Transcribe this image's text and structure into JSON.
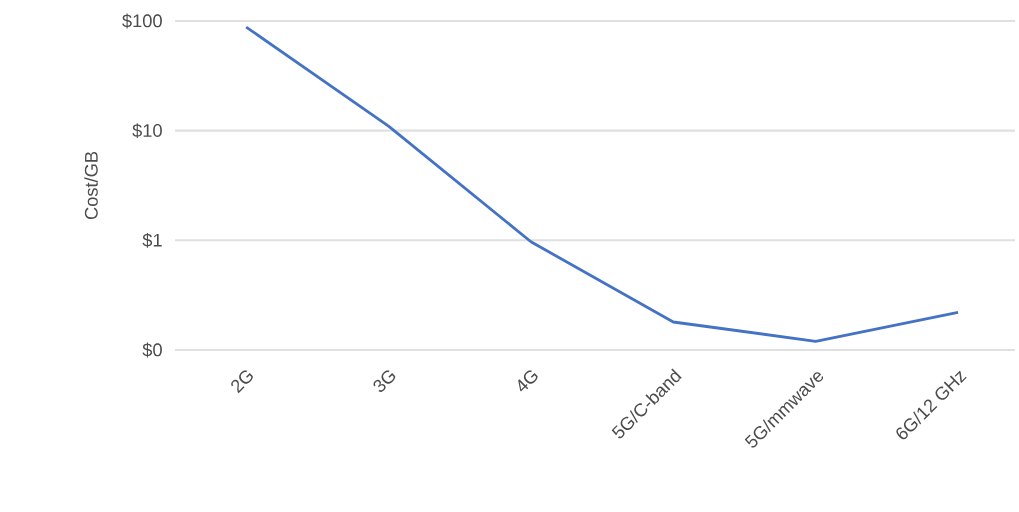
{
  "chart_data": {
    "type": "line",
    "ylabel": "Cost/GB",
    "categories": [
      "2G",
      "3G",
      "4G",
      "5G/C-band",
      "5G/mmwave",
      "6G/12 GHz"
    ],
    "values": [
      88,
      11,
      0.97,
      0.18,
      0.12,
      0.22
    ],
    "color": "#4472c4",
    "log": "y",
    "ylim": [
      0.1,
      100
    ],
    "yticks": [
      {
        "value": 0.1,
        "label": "$0"
      },
      {
        "value": 1,
        "label": "$1"
      },
      {
        "value": 10,
        "label": "$10"
      },
      {
        "value": 100,
        "label": "$100"
      }
    ],
    "grid": "y",
    "marker": "none",
    "line_style": "solid"
  }
}
